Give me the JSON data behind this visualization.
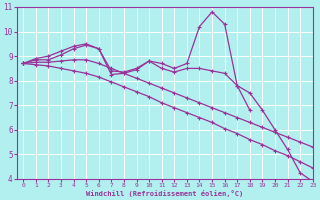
{
  "title": "",
  "xlabel": "Windchill (Refroidissement éolien,°C)",
  "ylabel": "",
  "xlim": [
    -0.5,
    23
  ],
  "ylim": [
    4,
    11
  ],
  "yticks": [
    4,
    5,
    6,
    7,
    8,
    9,
    10,
    11
  ],
  "xticks": [
    0,
    1,
    2,
    3,
    4,
    5,
    6,
    7,
    8,
    9,
    10,
    11,
    12,
    13,
    14,
    15,
    16,
    17,
    18,
    19,
    20,
    21,
    22,
    23
  ],
  "bg_color": "#b2f0f0",
  "grid_color": "#ffffff",
  "line_color": "#993399",
  "lines": [
    {
      "x": [
        0,
        1,
        2,
        3,
        4,
        5,
        6,
        7,
        8,
        9,
        10,
        11,
        12,
        13,
        14,
        15,
        16,
        17,
        18,
        19,
        20,
        21,
        22,
        23
      ],
      "y": [
        8.7,
        8.9,
        9.0,
        9.2,
        9.4,
        9.5,
        9.3,
        8.4,
        8.35,
        8.5,
        8.8,
        8.7,
        8.5,
        8.7,
        10.2,
        10.8,
        10.3,
        7.8,
        6.8,
        null,
        null,
        null,
        null,
        null
      ]
    },
    {
      "x": [
        0,
        1,
        2,
        3,
        4,
        5,
        6,
        7,
        8,
        9,
        10,
        11,
        12,
        13,
        14,
        15,
        16,
        17,
        18,
        19,
        20,
        21,
        22,
        23
      ],
      "y": [
        8.7,
        8.85,
        8.85,
        9.05,
        9.3,
        9.45,
        9.3,
        8.25,
        8.3,
        8.45,
        8.8,
        8.5,
        8.35,
        8.5,
        8.5,
        8.4,
        8.3,
        7.8,
        7.5,
        6.8,
        6.0,
        5.2,
        4.25,
        3.9
      ]
    },
    {
      "x": [
        0,
        1,
        2,
        3,
        4,
        5,
        6,
        7,
        8,
        9,
        10,
        11,
        12,
        13,
        14,
        15,
        16,
        17,
        18,
        19,
        20,
        21,
        22,
        23
      ],
      "y": [
        8.7,
        8.75,
        8.75,
        8.8,
        8.85,
        8.85,
        8.7,
        8.5,
        8.3,
        8.1,
        7.9,
        7.7,
        7.5,
        7.3,
        7.1,
        6.9,
        6.7,
        6.5,
        6.3,
        6.1,
        5.9,
        5.7,
        5.5,
        5.3
      ]
    },
    {
      "x": [
        0,
        1,
        2,
        3,
        4,
        5,
        6,
        7,
        8,
        9,
        10,
        11,
        12,
        13,
        14,
        15,
        16,
        17,
        18,
        19,
        20,
        21,
        22,
        23
      ],
      "y": [
        8.7,
        8.65,
        8.6,
        8.5,
        8.4,
        8.3,
        8.15,
        7.95,
        7.75,
        7.55,
        7.35,
        7.1,
        6.9,
        6.7,
        6.5,
        6.3,
        6.05,
        5.85,
        5.6,
        5.4,
        5.15,
        4.95,
        4.7,
        4.45
      ]
    }
  ]
}
